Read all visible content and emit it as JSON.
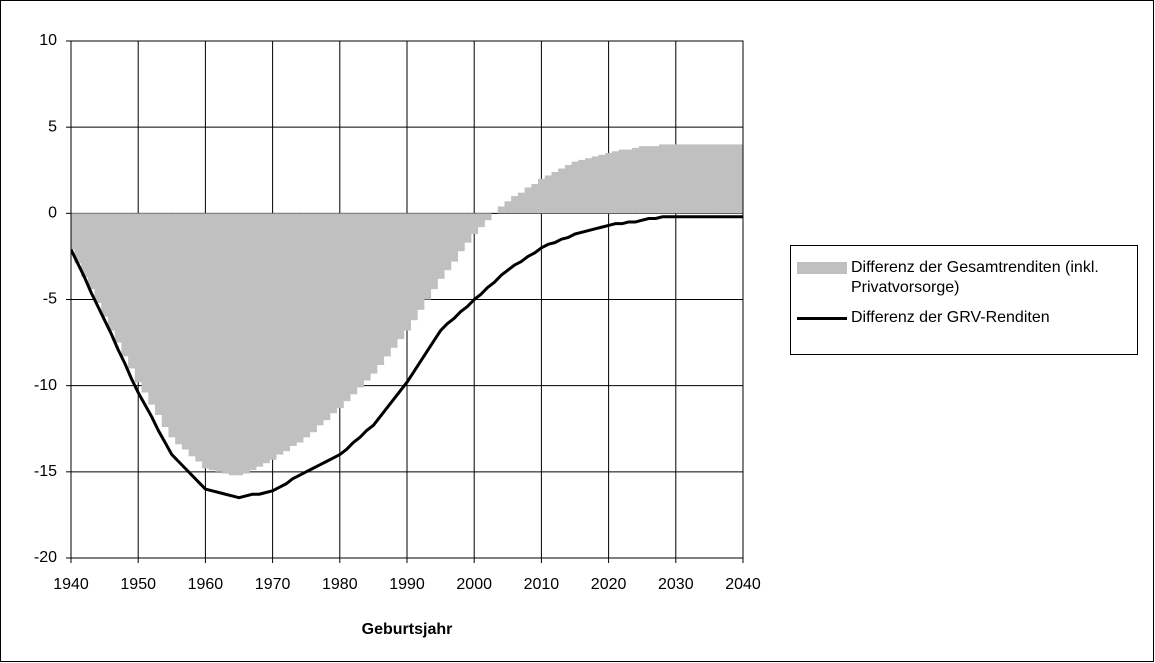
{
  "chart_data": {
    "type": "line",
    "x_label": "Geburtsjahr",
    "x": [
      1940,
      1941,
      1942,
      1943,
      1944,
      1945,
      1946,
      1947,
      1948,
      1949,
      1950,
      1951,
      1952,
      1953,
      1954,
      1955,
      1956,
      1957,
      1958,
      1959,
      1960,
      1961,
      1962,
      1963,
      1964,
      1965,
      1966,
      1967,
      1968,
      1969,
      1970,
      1971,
      1972,
      1973,
      1974,
      1975,
      1976,
      1977,
      1978,
      1979,
      1980,
      1981,
      1982,
      1983,
      1984,
      1985,
      1986,
      1987,
      1988,
      1989,
      1990,
      1991,
      1992,
      1993,
      1994,
      1995,
      1996,
      1997,
      1998,
      1999,
      2000,
      2001,
      2002,
      2003,
      2004,
      2005,
      2006,
      2007,
      2008,
      2009,
      2010,
      2011,
      2012,
      2013,
      2014,
      2015,
      2016,
      2017,
      2018,
      2019,
      2020,
      2021,
      2022,
      2023,
      2024,
      2025,
      2026,
      2027,
      2028,
      2029,
      2030,
      2031,
      2032,
      2033,
      2034,
      2035,
      2036,
      2037,
      2038,
      2039,
      2040
    ],
    "series": [
      {
        "name": "Differenz der Gesamtrenditen (inkl. Privatvorsorge)",
        "type": "bar",
        "color": "#c0c0c0",
        "values": [
          -2.1,
          -2.9,
          -3.7,
          -4.4,
          -5.2,
          -6.0,
          -6.8,
          -7.5,
          -8.3,
          -9.0,
          -9.8,
          -10.4,
          -11.1,
          -11.7,
          -12.4,
          -13.0,
          -13.4,
          -13.7,
          -14.1,
          -14.4,
          -14.8,
          -14.9,
          -15.0,
          -15.1,
          -15.2,
          -15.2,
          -15.1,
          -14.9,
          -14.7,
          -14.5,
          -14.3,
          -14.0,
          -13.8,
          -13.5,
          -13.3,
          -13.0,
          -12.7,
          -12.3,
          -12.0,
          -11.6,
          -11.3,
          -10.9,
          -10.5,
          -10.1,
          -9.7,
          -9.3,
          -8.8,
          -8.3,
          -7.8,
          -7.3,
          -6.8,
          -6.2,
          -5.6,
          -5.0,
          -4.4,
          -3.8,
          -3.3,
          -2.8,
          -2.2,
          -1.7,
          -1.2,
          -0.8,
          -0.4,
          0.0,
          0.4,
          0.7,
          1.0,
          1.2,
          1.5,
          1.7,
          2.0,
          2.2,
          2.4,
          2.6,
          2.8,
          3.0,
          3.1,
          3.2,
          3.3,
          3.4,
          3.5,
          3.6,
          3.7,
          3.7,
          3.8,
          3.9,
          3.9,
          3.9,
          4.0,
          4.0,
          4.0,
          4.0,
          4.0,
          4.0,
          4.0,
          4.0,
          4.0,
          4.0,
          4.0,
          4.0,
          4.0
        ]
      },
      {
        "name": "Differenz der GRV-Renditen",
        "type": "line",
        "color": "#000000",
        "values": [
          -2.1,
          -2.9,
          -3.7,
          -4.6,
          -5.4,
          -6.2,
          -7.0,
          -7.9,
          -8.7,
          -9.6,
          -10.4,
          -11.1,
          -11.8,
          -12.6,
          -13.3,
          -14.0,
          -14.4,
          -14.8,
          -15.2,
          -15.6,
          -16.0,
          -16.1,
          -16.2,
          -16.3,
          -16.4,
          -16.5,
          -16.4,
          -16.3,
          -16.3,
          -16.2,
          -16.1,
          -15.9,
          -15.7,
          -15.4,
          -15.2,
          -15.0,
          -14.8,
          -14.6,
          -14.4,
          -14.2,
          -14.0,
          -13.7,
          -13.3,
          -13.0,
          -12.6,
          -12.3,
          -11.8,
          -11.3,
          -10.8,
          -10.3,
          -9.8,
          -9.2,
          -8.6,
          -8.0,
          -7.4,
          -6.8,
          -6.4,
          -6.1,
          -5.7,
          -5.4,
          -5.0,
          -4.7,
          -4.3,
          -4.0,
          -3.6,
          -3.3,
          -3.0,
          -2.8,
          -2.5,
          -2.3,
          -2.0,
          -1.8,
          -1.7,
          -1.5,
          -1.4,
          -1.2,
          -1.1,
          -1.0,
          -0.9,
          -0.8,
          -0.7,
          -0.6,
          -0.6,
          -0.5,
          -0.5,
          -0.4,
          -0.3,
          -0.3,
          -0.2,
          -0.2,
          -0.2,
          -0.2,
          -0.2,
          -0.2,
          -0.2,
          -0.2,
          -0.2,
          -0.2,
          -0.2,
          -0.2,
          -0.2
        ]
      }
    ],
    "xlim": [
      1940,
      2040
    ],
    "xticks": [
      1940,
      1950,
      1960,
      1970,
      1980,
      1990,
      2000,
      2010,
      2020,
      2030,
      2040
    ],
    "ylim": [
      -20,
      10
    ],
    "yticks": [
      -20,
      -15,
      -10,
      -5,
      0,
      5,
      10
    ],
    "grid": true,
    "legend": "right"
  }
}
